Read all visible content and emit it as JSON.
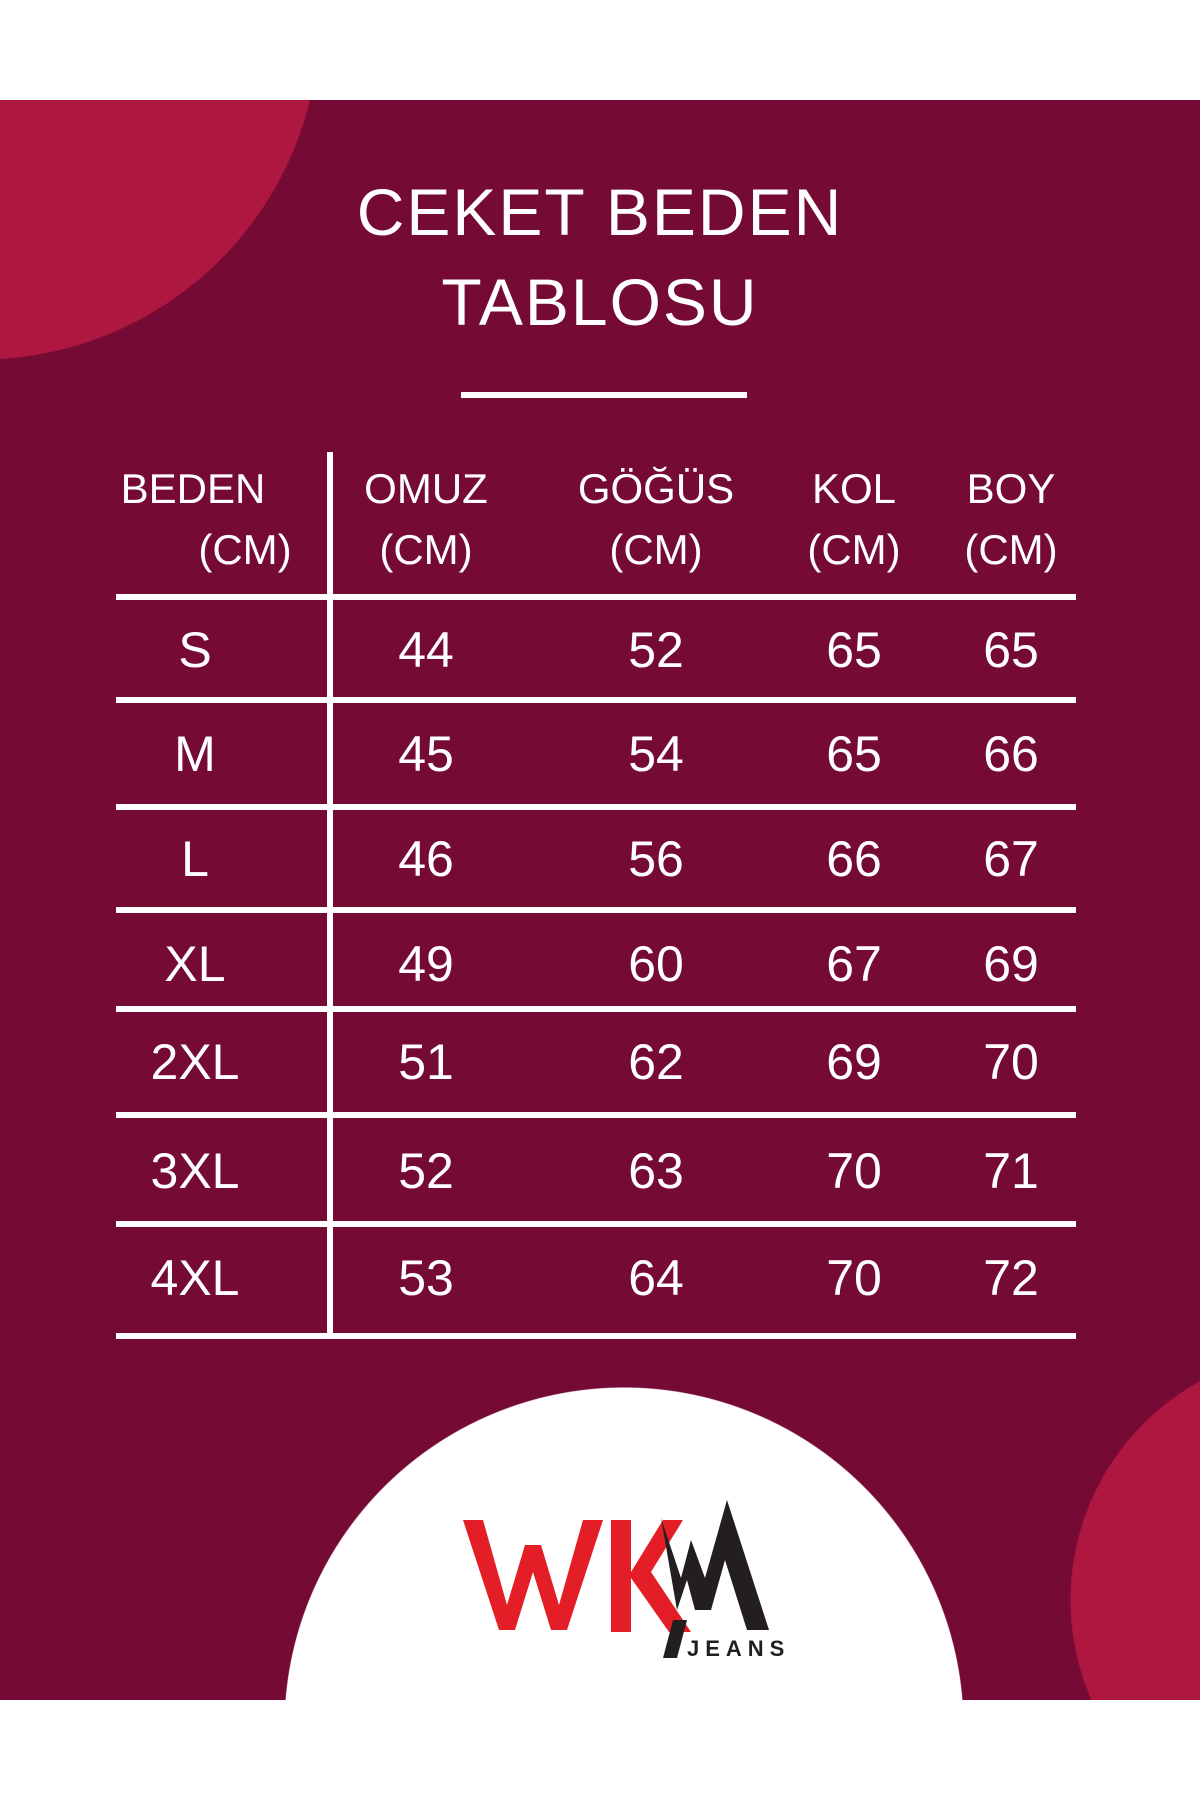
{
  "title": {
    "line1": "CEKET BEDEN",
    "line2": "TABLOSU"
  },
  "colors": {
    "background": "#750a35",
    "accent_circle": "#ae1740",
    "logo_red": "#e41e26",
    "logo_black": "#231f20"
  },
  "table": {
    "headers": [
      {
        "name": "BEDEN",
        "unit": "(CM)"
      },
      {
        "name": "OMUZ",
        "unit": "(CM)"
      },
      {
        "name": "GÖĞÜS",
        "unit": "(CM)"
      },
      {
        "name": "KOL",
        "unit": "(CM)"
      },
      {
        "name": "BOY",
        "unit": "(CM)"
      }
    ],
    "rows": [
      [
        "S",
        "44",
        "52",
        "65",
        "65"
      ],
      [
        "M",
        "45",
        "54",
        "65",
        "66"
      ],
      [
        "L",
        "46",
        "56",
        "66",
        "67"
      ],
      [
        "XL",
        "49",
        "60",
        "67",
        "69"
      ],
      [
        "2XL",
        "51",
        "62",
        "69",
        "70"
      ],
      [
        "3XL",
        "52",
        "63",
        "70",
        "71"
      ],
      [
        "4XL",
        "53",
        "64",
        "70",
        "72"
      ]
    ]
  },
  "logo": {
    "brand": "WKM",
    "sub": "JEANS"
  }
}
